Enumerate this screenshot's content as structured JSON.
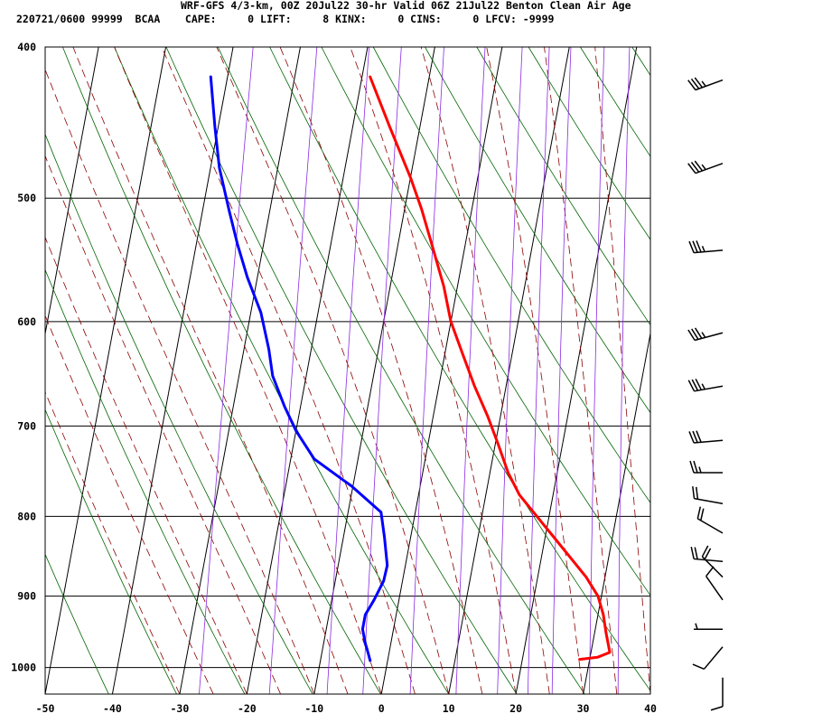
{
  "header": {
    "line1": "WRF-GFS 4/3-km, 00Z 20Jul22 30-hr Valid 06Z 21Jul22 Benton Clean Air Age",
    "line2": "220721/0600 99999  BCAA    CAPE:     0 LIFT:     8 KINX:     0 CINS:     0 LFCV: -9999"
  },
  "colors": {
    "temperature": "#ff0000",
    "dewpoint": "#0000ff",
    "isotherm_grid": "#000000",
    "dry_adiabat": "#006400",
    "moist_adiabat": "#8b0000",
    "mixing_ratio": "#8a2be2",
    "wind_barb": "#000000"
  },
  "chart_data": {
    "type": "line",
    "title": "",
    "xlabel": "",
    "ylabel": "",
    "x_ticks": [
      "-50",
      "-40",
      "-30",
      "-20",
      "-10",
      "0",
      "10",
      "20",
      "30",
      "40"
    ],
    "y_ticks": [
      "400",
      "500",
      "600",
      "700",
      "800",
      "900",
      "1000"
    ],
    "xlim": [
      -50,
      40
    ],
    "ylim": [
      1040,
      400
    ],
    "y_scale": "log",
    "grid": true,
    "series": [
      {
        "key": "temperature",
        "color": "#ff0000",
        "points": [
          [
            -18.8,
            418
          ],
          [
            -14.5,
            450
          ],
          [
            -10,
            485
          ],
          [
            -7.5,
            508
          ],
          [
            -5,
            535
          ],
          [
            -2,
            570
          ],
          [
            0,
            600
          ],
          [
            2.7,
            630
          ],
          [
            5.3,
            660
          ],
          [
            8.1,
            690
          ],
          [
            10.5,
            720
          ],
          [
            12.7,
            750
          ],
          [
            15,
            775
          ],
          [
            18.2,
            800
          ],
          [
            21.3,
            825
          ],
          [
            24.3,
            850
          ],
          [
            27.2,
            875
          ],
          [
            29.5,
            900
          ],
          [
            30.8,
            925
          ],
          [
            31.7,
            950
          ],
          [
            32.5,
            970
          ],
          [
            32.8,
            978
          ],
          [
            31.1,
            985
          ],
          [
            28.5,
            988
          ]
        ]
      },
      {
        "key": "dewpoint",
        "color": "#0000ff",
        "points": [
          [
            -42.5,
            418
          ],
          [
            -40.5,
            450
          ],
          [
            -38.7,
            478
          ],
          [
            -36,
            510
          ],
          [
            -33.9,
            535
          ],
          [
            -31.5,
            562
          ],
          [
            -28.5,
            592
          ],
          [
            -26.3,
            625
          ],
          [
            -25,
            650
          ],
          [
            -22.4,
            680
          ],
          [
            -20,
            705
          ],
          [
            -16.5,
            735
          ],
          [
            -10.2,
            765
          ],
          [
            -5.1,
            795
          ],
          [
            -3.9,
            825
          ],
          [
            -2.7,
            860
          ],
          [
            -2.8,
            880
          ],
          [
            -3.7,
            905
          ],
          [
            -4.6,
            925
          ],
          [
            -4.6,
            945
          ],
          [
            -3.8,
            965
          ],
          [
            -3.3,
            975
          ],
          [
            -2.6,
            990
          ]
        ]
      }
    ],
    "wind_barbs": [
      {
        "pressure": 420,
        "dir": 250,
        "speed": 35
      },
      {
        "pressure": 475,
        "dir": 250,
        "speed": 35
      },
      {
        "pressure": 540,
        "dir": 265,
        "speed": 35
      },
      {
        "pressure": 610,
        "dir": 255,
        "speed": 35
      },
      {
        "pressure": 660,
        "dir": 260,
        "speed": 35
      },
      {
        "pressure": 715,
        "dir": 265,
        "speed": 30
      },
      {
        "pressure": 750,
        "dir": 270,
        "speed": 25
      },
      {
        "pressure": 785,
        "dir": 280,
        "speed": 20
      },
      {
        "pressure": 820,
        "dir": 300,
        "speed": 20
      },
      {
        "pressure": 855,
        "dir": 275,
        "speed": 20
      },
      {
        "pressure": 875,
        "dir": 315,
        "speed": 20
      },
      {
        "pressure": 905,
        "dir": 325,
        "speed": 10
      },
      {
        "pressure": 945,
        "dir": 270,
        "speed": 5
      },
      {
        "pressure": 970,
        "dir": 220,
        "speed": 10
      },
      {
        "pressure": 1015,
        "dir": 180,
        "speed": 10
      }
    ]
  }
}
